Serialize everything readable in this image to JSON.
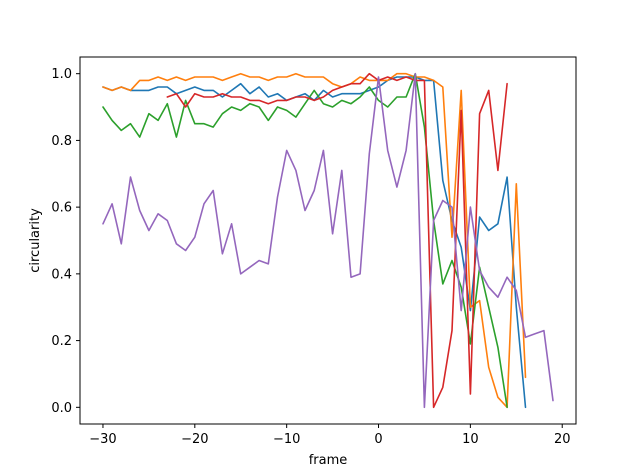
{
  "chart_data": {
    "type": "line",
    "xlabel": "frame",
    "ylabel": "circularity",
    "xlim": [
      -32.5,
      21.5
    ],
    "ylim": [
      -0.05,
      1.05
    ],
    "xticks": [
      -30,
      -20,
      -10,
      0,
      10,
      20
    ],
    "yticks": [
      0.0,
      0.2,
      0.4,
      0.6,
      0.8,
      1.0
    ],
    "xtick_labels": [
      "−30",
      "−20",
      "−10",
      "0",
      "10",
      "20"
    ],
    "ytick_labels": [
      "0.0",
      "0.2",
      "0.4",
      "0.6",
      "0.8",
      "1.0"
    ],
    "grid": false,
    "legend": "none",
    "series": [
      {
        "color": "#1f77b4",
        "x": [
          -30,
          -29,
          -28,
          -27,
          -26,
          -25,
          -24,
          -23,
          -22,
          -21,
          -20,
          -19,
          -18,
          -17,
          -16,
          -15,
          -14,
          -13,
          -12,
          -11,
          -10,
          -9,
          -8,
          -7,
          -6,
          -5,
          -4,
          -3,
          -2,
          -1,
          0,
          1,
          2,
          3,
          4,
          5,
          6,
          7,
          8,
          9,
          10,
          11,
          12,
          13,
          14,
          15,
          16
        ],
        "y": [
          0.96,
          0.95,
          0.96,
          0.95,
          0.95,
          0.95,
          0.96,
          0.96,
          0.94,
          0.95,
          0.96,
          0.95,
          0.95,
          0.93,
          0.95,
          0.97,
          0.94,
          0.96,
          0.93,
          0.94,
          0.92,
          0.93,
          0.94,
          0.92,
          0.95,
          0.93,
          0.94,
          0.94,
          0.94,
          0.95,
          0.96,
          0.98,
          0.99,
          0.99,
          0.99,
          0.98,
          0.98,
          0.68,
          0.56,
          0.48,
          0.29,
          0.57,
          0.53,
          0.55,
          0.69,
          0.3,
          0.0
        ]
      },
      {
        "color": "#ff7f0e",
        "x": [
          -30,
          -29,
          -28,
          -27,
          -26,
          -25,
          -24,
          -23,
          -22,
          -21,
          -20,
          -19,
          -18,
          -17,
          -16,
          -15,
          -14,
          -13,
          -12,
          -11,
          -10,
          -9,
          -8,
          -7,
          -6,
          -5,
          -4,
          -3,
          -2,
          -1,
          0,
          1,
          2,
          3,
          4,
          5,
          6,
          7,
          8,
          9,
          10,
          11,
          12,
          13,
          14,
          15,
          16
        ],
        "y": [
          0.96,
          0.95,
          0.96,
          0.95,
          0.98,
          0.98,
          0.99,
          0.98,
          0.99,
          0.98,
          0.99,
          0.99,
          0.99,
          0.98,
          0.99,
          1.0,
          0.99,
          0.99,
          0.98,
          0.99,
          0.99,
          1.0,
          0.99,
          0.99,
          0.99,
          0.97,
          0.96,
          0.97,
          0.99,
          0.98,
          0.98,
          0.98,
          1.0,
          1.0,
          0.99,
          0.99,
          0.98,
          0.96,
          0.51,
          0.95,
          0.3,
          0.32,
          0.12,
          0.03,
          0.0,
          0.67,
          0.09
        ]
      },
      {
        "color": "#2ca02c",
        "x": [
          -30,
          -29,
          -28,
          -27,
          -26,
          -25,
          -24,
          -23,
          -22,
          -21,
          -20,
          -19,
          -18,
          -17,
          -16,
          -15,
          -14,
          -13,
          -12,
          -11,
          -10,
          -9,
          -8,
          -7,
          -6,
          -5,
          -4,
          -3,
          -2,
          -1,
          0,
          1,
          2,
          3,
          4,
          5,
          6,
          7,
          8,
          9,
          10,
          11,
          12,
          13,
          14
        ],
        "y": [
          0.9,
          0.86,
          0.83,
          0.85,
          0.81,
          0.88,
          0.86,
          0.91,
          0.81,
          0.92,
          0.85,
          0.85,
          0.84,
          0.88,
          0.9,
          0.89,
          0.91,
          0.9,
          0.86,
          0.9,
          0.89,
          0.87,
          0.91,
          0.95,
          0.91,
          0.9,
          0.92,
          0.91,
          0.93,
          0.96,
          0.92,
          0.9,
          0.93,
          0.93,
          1.0,
          0.84,
          0.56,
          0.37,
          0.44,
          0.36,
          0.19,
          0.42,
          0.3,
          0.18,
          0.0
        ]
      },
      {
        "color": "#d62728",
        "x": [
          -23,
          -22,
          -21,
          -20,
          -19,
          -18,
          -17,
          -16,
          -15,
          -14,
          -13,
          -12,
          -11,
          -10,
          -9,
          -8,
          -7,
          -6,
          -5,
          -4,
          -3,
          -2,
          -1,
          0,
          1,
          2,
          3,
          4,
          5,
          6,
          7,
          8,
          9,
          10,
          11,
          12,
          13,
          14
        ],
        "y": [
          0.93,
          0.94,
          0.9,
          0.94,
          0.93,
          0.93,
          0.94,
          0.93,
          0.93,
          0.92,
          0.92,
          0.91,
          0.92,
          0.92,
          0.93,
          0.93,
          0.92,
          0.93,
          0.95,
          0.96,
          0.97,
          0.97,
          1.0,
          0.98,
          0.99,
          0.98,
          0.99,
          0.98,
          0.98,
          0.0,
          0.06,
          0.23,
          0.89,
          0.04,
          0.88,
          0.95,
          0.71,
          0.97
        ]
      },
      {
        "color": "#9467bd",
        "x": [
          -30,
          -29,
          -28,
          -27,
          -26,
          -25,
          -24,
          -23,
          -22,
          -21,
          -20,
          -19,
          -18,
          -17,
          -16,
          -15,
          -14,
          -13,
          -12,
          -11,
          -10,
          -9,
          -8,
          -7,
          -6,
          -5,
          -4,
          -3,
          -2,
          -1,
          0,
          1,
          2,
          3,
          4,
          5,
          6,
          7,
          8,
          9,
          10,
          11,
          12,
          13,
          14,
          15,
          16,
          17,
          18,
          19
        ],
        "y": [
          0.55,
          0.61,
          0.49,
          0.69,
          0.59,
          0.53,
          0.58,
          0.56,
          0.49,
          0.47,
          0.51,
          0.61,
          0.65,
          0.46,
          0.55,
          0.4,
          0.42,
          0.44,
          0.43,
          0.63,
          0.77,
          0.71,
          0.59,
          0.65,
          0.77,
          0.52,
          0.71,
          0.39,
          0.4,
          0.76,
          0.99,
          0.77,
          0.66,
          0.77,
          1.0,
          0.0,
          0.56,
          0.62,
          0.6,
          0.29,
          0.6,
          0.41,
          0.36,
          0.33,
          0.39,
          0.35,
          0.21,
          0.22,
          0.23,
          0.02
        ]
      }
    ]
  }
}
